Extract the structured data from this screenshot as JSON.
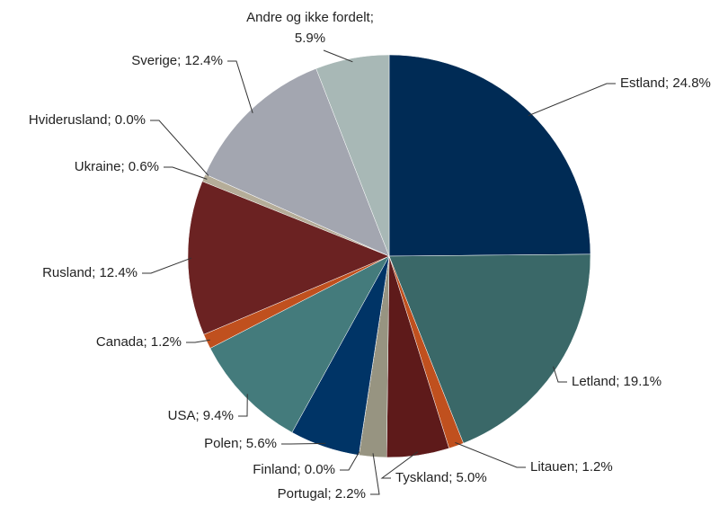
{
  "chart_data": {
    "type": "pie",
    "value_labels": [
      "Estland; 24.8%",
      "Letland; 19.1%",
      "Litauen; 1.2%",
      "Tyskland; 5.0%",
      "Portugal; 2.2%",
      "Finland; 0.0%",
      "Polen; 5.6%",
      "USA; 9.4%",
      "Canada; 1.2%",
      "Rusland; 12.4%",
      "Ukraine; 0.6%",
      "Hviderusland; 0.0%",
      "Sverige; 12.4%",
      "Andre og ikke fordelt;\n5.9%"
    ],
    "values": [
      24.8,
      19.1,
      1.2,
      5.0,
      2.2,
      0.0,
      5.6,
      9.4,
      1.2,
      12.4,
      0.6,
      0.0,
      12.4,
      5.9
    ],
    "colors": [
      "#002b55",
      "#3a6868",
      "#c0501e",
      "#5e1a1a",
      "#979481",
      "#6b6b6b",
      "#003466",
      "#447b7c",
      "#c0501e",
      "#6b2222",
      "#b5ad99",
      "#8c8c8c",
      "#a3a6b0",
      "#a8b8b6"
    ]
  }
}
